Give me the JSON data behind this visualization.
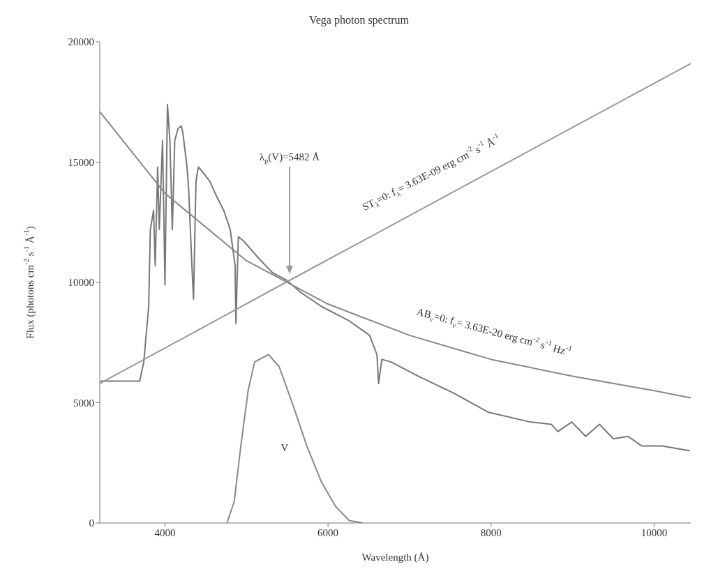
{
  "chart_data": {
    "type": "line",
    "title": "Vega photon spectrum",
    "xlabel": "Wavelength (Å)",
    "ylabel": "Flux (photons cm$^{-2}$ s$^{-1}$ Å$^{-1}$)",
    "xlim": [
      3200,
      10450
    ],
    "ylim": [
      0,
      20000
    ],
    "xticks": [
      4000,
      6000,
      8000,
      10000
    ],
    "yticks": [
      0,
      5000,
      10000,
      15000,
      20000
    ],
    "grid": false,
    "series": [
      {
        "color": "#777777",
        "x": [
          3210,
          3690,
          3740,
          3800,
          3820,
          3860,
          3880,
          3910,
          3930,
          3970,
          4000,
          4030,
          4060,
          4090,
          4120,
          4160,
          4200,
          4220,
          4270,
          4290,
          4330,
          4350,
          4380,
          4410,
          4460,
          4550,
          4630,
          4720,
          4800,
          4860,
          4870,
          4900,
          4970,
          5150,
          5320,
          5490,
          5660,
          5920,
          6260,
          6510,
          6600,
          6620,
          6660,
          6770,
          7110,
          7540,
          7970,
          8480,
          8740,
          8820,
          8990,
          9160,
          9330,
          9500,
          9680,
          9850,
          10100,
          10440
        ],
        "values": [
          5900,
          5900,
          6700,
          9000,
          12200,
          13000,
          10700,
          14800,
          12200,
          15900,
          9900,
          17400,
          15900,
          12200,
          15900,
          16400,
          16500,
          16200,
          14800,
          13900,
          10700,
          9300,
          14200,
          14800,
          14600,
          14200,
          13600,
          13000,
          12200,
          10700,
          8300,
          11900,
          11700,
          11000,
          10400,
          10100,
          9600,
          9000,
          8400,
          7800,
          7000,
          5800,
          6800,
          6700,
          6100,
          5400,
          4600,
          4200,
          4100,
          3800,
          4200,
          3600,
          4100,
          3500,
          3600,
          3200,
          3200,
          3000
        ]
      },
      {
        "color": "#888888",
        "x": [
          3200,
          4000,
          5000,
          6000,
          7000,
          8000,
          9000,
          10000,
          10450
        ],
        "values": [
          17100,
          13700,
          10900,
          9100,
          7800,
          6800,
          6100,
          5500,
          5200
        ]
      },
      {
        "color": "#999999",
        "x": [
          3200,
          5482,
          10450
        ],
        "values": [
          5800,
          10000,
          19100
        ]
      },
      {
        "color": "#888888",
        "x": [
          4760,
          4850,
          4930,
          5020,
          5100,
          5270,
          5400,
          5570,
          5740,
          5920,
          6090,
          6260,
          6430
        ],
        "values": [
          0,
          900,
          3200,
          5500,
          6700,
          7000,
          6500,
          4900,
          3200,
          1700,
          700,
          100,
          0
        ]
      }
    ],
    "annotations": [
      "λ$_{p}$(V)=5482 Å",
      "ST$_{λ}$=0: f$_{λ}$= 3.63E-09 erg cm$^{-2}$ s$^{-1}$ Å$^{-1}$",
      "AB$_{ν}$=0: f$_{ν}$= 3.63E-20 erg cm$^{-2}$ s$^{-1}$ Hz$^{-1}$",
      "V"
    ]
  }
}
